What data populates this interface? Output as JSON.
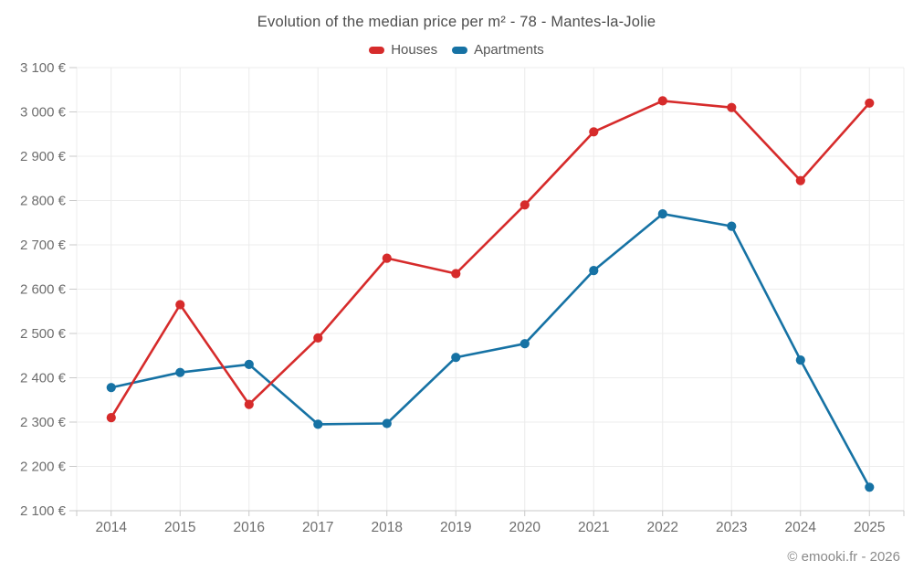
{
  "chart_data": {
    "type": "line",
    "title": "Evolution of the median price per m² - 78 - Mantes-la-Jolie",
    "categories": [
      "2014",
      "2015",
      "2016",
      "2017",
      "2018",
      "2019",
      "2020",
      "2021",
      "2022",
      "2023",
      "2024",
      "2025"
    ],
    "series": [
      {
        "name": "Houses",
        "color": "#d62b2b",
        "values": [
          2310,
          2565,
          2340,
          2490,
          2670,
          2635,
          2790,
          2955,
          3025,
          3010,
          2845,
          3020
        ]
      },
      {
        "name": "Apartments",
        "color": "#1672a4",
        "values": [
          2378,
          2412,
          2430,
          2295,
          2297,
          2446,
          2477,
          2642,
          2770,
          2742,
          2440,
          2153
        ]
      }
    ],
    "ylim": [
      2100,
      3100
    ],
    "y_tick_step": 100,
    "y_tick_labels": [
      "2 100 €",
      "2 200 €",
      "2 300 €",
      "2 400 €",
      "2 500 €",
      "2 600 €",
      "2 700 €",
      "2 800 €",
      "2 900 €",
      "3 000 €",
      "3 100 €"
    ],
    "grid": true,
    "legend_position": "top",
    "xlabel": "",
    "ylabel": ""
  },
  "colors": {
    "houses": "#d62b2b",
    "apartments": "#1672a4",
    "gridline": "#ececec",
    "axis_line": "#c9c9c9",
    "tick_label": "#6e6e6e",
    "title_text": "#4d4d4d"
  },
  "footer": {
    "copyright": "© emooki.fr - 2026"
  }
}
